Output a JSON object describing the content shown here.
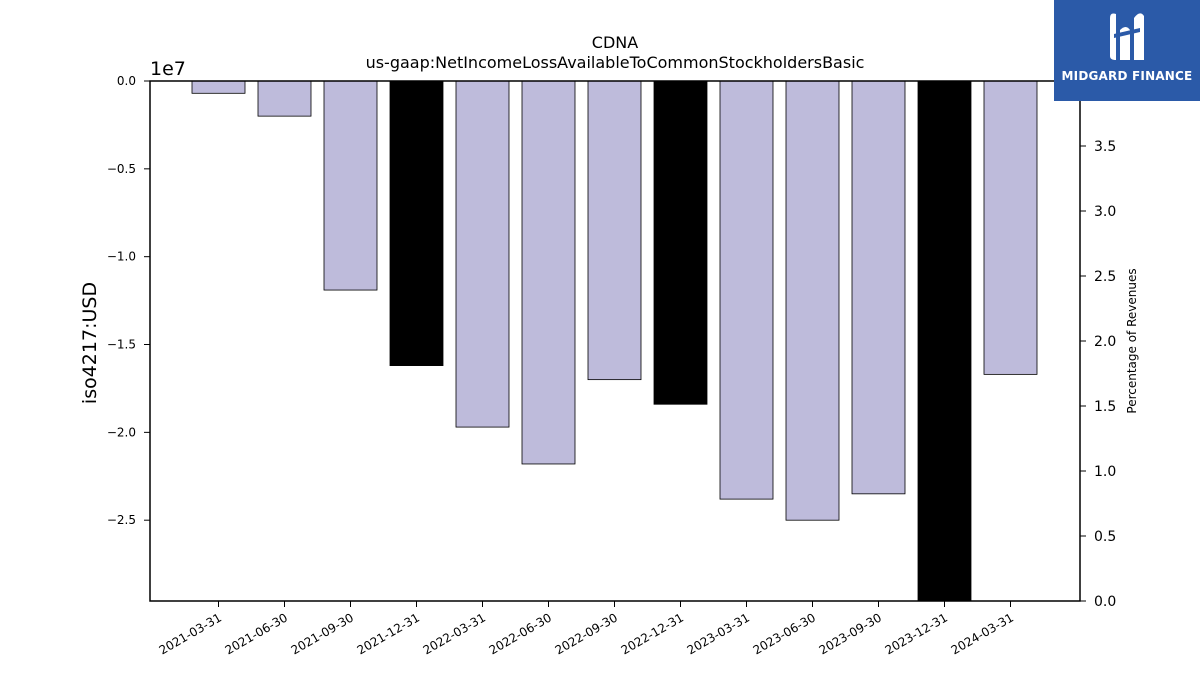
{
  "chart_data": {
    "type": "bar",
    "title": "CDNA",
    "subtitle": "us-gaap:NetIncomeLossAvailableToCommonStockholdersBasic",
    "ylabel": "iso4217:USD",
    "y2label": "Percentage of Revenues",
    "y_scale_label": "1e7",
    "categories": [
      "2021-03-31",
      "2021-06-30",
      "2021-09-30",
      "2021-12-31",
      "2022-03-31",
      "2022-06-30",
      "2022-09-30",
      "2022-12-31",
      "2023-03-31",
      "2023-06-30",
      "2023-09-30",
      "2023-12-31",
      "2024-03-31"
    ],
    "values": [
      -700000,
      -2000000,
      -11900000,
      -16200000,
      -19700000,
      -21800000,
      -17000000,
      -18400000,
      -23800000,
      -25000000,
      -23500000,
      -29600000,
      -16700000
    ],
    "highlighted": [
      false,
      false,
      false,
      true,
      false,
      false,
      false,
      true,
      false,
      false,
      false,
      true,
      false
    ],
    "ylim": [
      -29600000,
      0
    ],
    "y_ticks": [
      0.0,
      -0.5,
      -1.0,
      -1.5,
      -2.0,
      -2.5
    ],
    "y_tick_labels": [
      "0.0",
      "−0.5",
      "−1.0",
      "−1.5",
      "−2.0",
      "−2.5"
    ],
    "y2lim": [
      0,
      4.0
    ],
    "y2_ticks": [
      0.0,
      0.5,
      1.0,
      1.5,
      2.0,
      2.5,
      3.0,
      3.5
    ],
    "y2_tick_labels": [
      "0.0",
      "0.5",
      "1.0",
      "1.5",
      "2.0",
      "2.5",
      "3.0",
      "3.5"
    ],
    "colors": {
      "bar": "#bebbdb",
      "highlight": "#000000",
      "edge": "#000000"
    },
    "grid": false
  },
  "logo": {
    "text": "MIDGARD FINANCE",
    "color": "#2b5aa8"
  }
}
